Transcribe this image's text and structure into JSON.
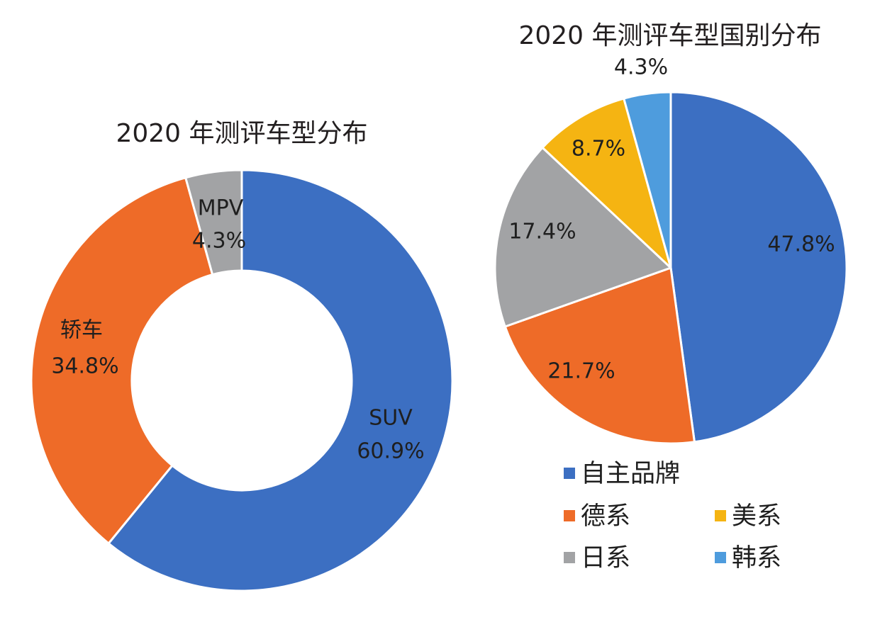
{
  "chart_data": [
    {
      "type": "pie",
      "variant": "donut",
      "title": "2020 年测评车型分布",
      "categories": [
        "SUV",
        "轿车",
        "MPV"
      ],
      "values": [
        60.9,
        34.8,
        4.3
      ],
      "data_labels": [
        "60.9%",
        "34.8%",
        "4.3%"
      ],
      "colors": [
        "#3c6fc2",
        "#ee6b28",
        "#a2a3a5"
      ],
      "legend": "none"
    },
    {
      "type": "pie",
      "title": "2020 年测评车型国别分布",
      "categories": [
        "自主品牌",
        "德系",
        "日系",
        "美系",
        "韩系"
      ],
      "values": [
        47.8,
        21.7,
        17.4,
        8.7,
        4.3
      ],
      "data_labels": [
        "47.8%",
        "21.7%",
        "17.4%",
        "8.7%",
        "4.3%"
      ],
      "colors": [
        "#3c6fc2",
        "#ee6b28",
        "#a2a3a5",
        "#f5b412",
        "#4e9cdd"
      ],
      "legend": "bottom"
    }
  ]
}
